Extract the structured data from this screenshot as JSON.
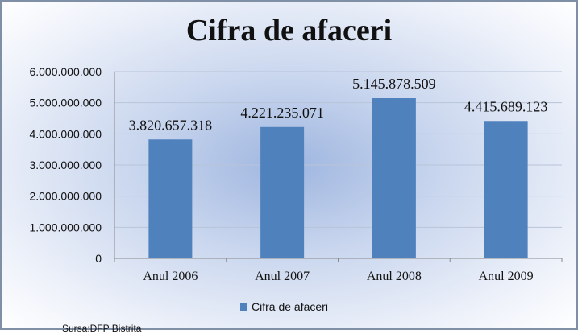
{
  "chart_data": {
    "type": "bar",
    "title": "Cifra de afaceri",
    "categories": [
      "Anul 2006",
      "Anul 2007",
      "Anul 2008",
      "Anul 2009"
    ],
    "series": [
      {
        "name": "Cifra de afaceri",
        "values": [
          3820657318,
          4221235071,
          5145878509,
          4415689123
        ]
      }
    ],
    "data_labels": [
      "3.820.657.318",
      "4.221.235.071",
      "5.145.878.509",
      "4.415.689.123"
    ],
    "yticks": [
      0,
      1000000000,
      2000000000,
      3000000000,
      4000000000,
      5000000000,
      6000000000
    ],
    "ytick_labels": [
      "0",
      "1.000.000.000",
      "2.000.000.000",
      "3.000.000.000",
      "4.000.000.000",
      "5.000.000.000",
      "6.000.000.000"
    ],
    "ylim": [
      0,
      6000000000
    ],
    "grid": true,
    "legend_position": "bottom",
    "bar_color": "#4f81bd"
  },
  "source_note": "Sursa:DFP Bistrita"
}
